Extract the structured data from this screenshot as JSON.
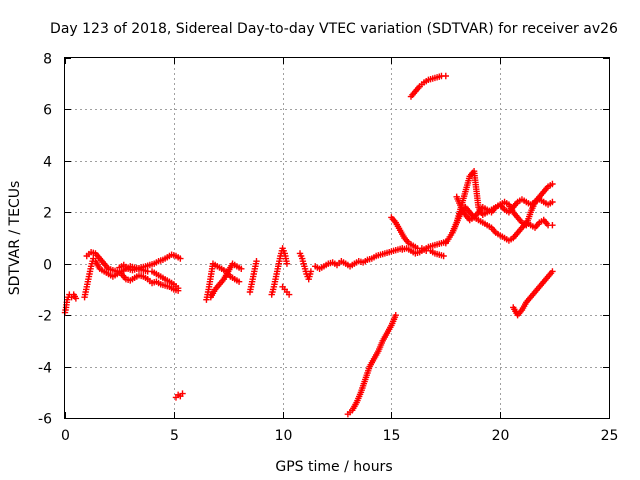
{
  "chart_data": {
    "type": "scatter",
    "title": "Day 123 of 2018, Sidereal Day-to-day VTEC variation (SDTVAR) for receiver av26",
    "xlabel": "GPS time / hours",
    "ylabel": "SDTVAR / TECUs",
    "xlim": [
      0,
      25
    ],
    "ylim": [
      -6,
      8
    ],
    "xticks": [
      0,
      5,
      10,
      15,
      20,
      25
    ],
    "yticks": [
      -6,
      -4,
      -2,
      0,
      2,
      4,
      6,
      8
    ],
    "grid": true,
    "marker": "plus",
    "color": "#ff0000",
    "series": [
      {
        "x": [
          0.0,
          0.05,
          0.1,
          0.2,
          0.3,
          0.4,
          0.5
        ],
        "y": [
          -1.9,
          -1.7,
          -1.4,
          -1.2,
          -1.3,
          -1.2,
          -1.35
        ]
      },
      {
        "x": [
          0.9,
          1.0,
          1.1,
          1.2,
          1.3,
          1.4,
          1.6,
          1.8,
          2.0,
          2.2,
          2.4,
          2.6,
          2.8,
          3.0,
          3.2,
          3.4,
          3.6,
          3.8,
          4.0,
          4.2,
          4.4,
          4.6,
          4.8,
          5.0,
          5.2
        ],
        "y": [
          -1.3,
          -0.9,
          -0.5,
          -0.1,
          0.2,
          0.1,
          -0.2,
          -0.3,
          -0.4,
          -0.5,
          -0.4,
          -0.3,
          -0.2,
          -0.1,
          -0.15,
          -0.2,
          -0.25,
          -0.3,
          -0.3,
          -0.4,
          -0.5,
          -0.6,
          -0.7,
          -0.8,
          -0.95
        ]
      },
      {
        "x": [
          1.0,
          1.2,
          1.4,
          1.6,
          1.8,
          2.0,
          2.2,
          2.4,
          2.6,
          2.8,
          3.0,
          3.2,
          3.4,
          3.6,
          3.8,
          4.0,
          4.2,
          4.4,
          4.6,
          4.8,
          5.0,
          5.2
        ],
        "y": [
          0.3,
          0.45,
          0.4,
          0.2,
          0.0,
          -0.2,
          -0.25,
          -0.3,
          -0.4,
          -0.6,
          -0.65,
          -0.55,
          -0.45,
          -0.5,
          -0.6,
          -0.75,
          -0.7,
          -0.8,
          -0.85,
          -0.9,
          -1.0,
          -1.05
        ]
      },
      {
        "x": [
          2.5,
          2.7,
          2.9,
          3.1,
          3.3,
          3.5,
          3.7,
          3.9,
          4.1,
          4.3,
          4.5,
          4.7,
          4.9,
          5.1,
          5.3
        ],
        "y": [
          -0.15,
          -0.05,
          -0.2,
          -0.25,
          -0.2,
          -0.15,
          -0.1,
          -0.05,
          0.0,
          0.1,
          0.15,
          0.25,
          0.35,
          0.3,
          0.2
        ]
      },
      {
        "x": [
          5.1,
          5.2,
          5.3,
          5.4
        ],
        "y": [
          -5.2,
          -5.1,
          -5.15,
          -5.05
        ]
      },
      {
        "x": [
          6.5,
          6.6,
          6.7,
          6.8,
          7.0,
          7.2,
          7.4,
          7.6,
          7.8,
          8.0
        ],
        "y": [
          -1.4,
          -1.0,
          -0.5,
          0.0,
          -0.1,
          -0.2,
          -0.3,
          -0.5,
          -0.6,
          -0.7
        ]
      },
      {
        "x": [
          6.7,
          6.9,
          7.1,
          7.3,
          7.5,
          7.7,
          7.9,
          8.1
        ],
        "y": [
          -1.3,
          -1.0,
          -0.8,
          -0.6,
          -0.3,
          0.0,
          -0.1,
          -0.2
        ]
      },
      {
        "x": [
          8.5,
          8.6,
          8.7,
          8.8
        ],
        "y": [
          -1.1,
          -0.7,
          -0.3,
          0.1
        ]
      },
      {
        "x": [
          9.5,
          9.6,
          9.7,
          9.8,
          9.9,
          10.0,
          10.1,
          10.2
        ],
        "y": [
          -1.2,
          -0.9,
          -0.5,
          -0.1,
          0.3,
          0.6,
          0.4,
          0.0
        ]
      },
      {
        "x": [
          10.0,
          10.1,
          10.2,
          10.3
        ],
        "y": [
          -0.9,
          -1.0,
          -1.1,
          -1.2
        ]
      },
      {
        "x": [
          10.8,
          10.9,
          11.0,
          11.1,
          11.2,
          11.3
        ],
        "y": [
          0.4,
          0.2,
          -0.1,
          -0.4,
          -0.6,
          -0.3
        ]
      },
      {
        "x": [
          11.5,
          11.7,
          11.9,
          12.1,
          12.3,
          12.5,
          12.7,
          12.9,
          13.1,
          13.3,
          13.5,
          13.7,
          13.9,
          14.1,
          14.3,
          14.5,
          14.7,
          14.9,
          15.1,
          15.3,
          15.5
        ],
        "y": [
          -0.1,
          -0.2,
          -0.1,
          0.0,
          0.05,
          -0.05,
          0.1,
          0.0,
          -0.1,
          0.0,
          0.1,
          0.05,
          0.15,
          0.2,
          0.3,
          0.35,
          0.4,
          0.45,
          0.5,
          0.55,
          0.6
        ]
      },
      {
        "x": [
          15.5,
          15.7,
          15.9,
          16.1,
          16.3,
          16.5,
          16.7,
          16.9,
          17.1,
          17.3,
          17.5
        ],
        "y": [
          0.55,
          0.6,
          0.5,
          0.4,
          0.45,
          0.55,
          0.65,
          0.7,
          0.75,
          0.8,
          0.85
        ]
      },
      {
        "x": [
          15.0,
          15.2,
          15.4,
          15.6,
          15.8,
          16.0,
          16.2,
          16.4,
          16.6,
          16.8,
          17.0,
          17.2,
          17.4
        ],
        "y": [
          1.8,
          1.6,
          1.3,
          1.0,
          0.8,
          0.7,
          0.6,
          0.6,
          0.5,
          0.5,
          0.4,
          0.35,
          0.3
        ]
      },
      {
        "x": [
          13.0,
          13.2,
          13.4,
          13.6,
          13.8,
          14.0,
          14.2,
          14.4,
          14.6,
          14.8,
          15.0,
          15.2
        ],
        "y": [
          -5.85,
          -5.7,
          -5.4,
          -5.0,
          -4.5,
          -4.0,
          -3.7,
          -3.4,
          -3.0,
          -2.7,
          -2.4,
          -2.0
        ]
      },
      {
        "x": [
          15.9,
          16.1,
          16.3,
          16.5,
          16.7,
          16.9,
          17.1,
          17.3,
          17.5
        ],
        "y": [
          6.5,
          6.7,
          6.9,
          7.05,
          7.15,
          7.2,
          7.25,
          7.3,
          7.3
        ]
      },
      {
        "x": [
          17.5,
          17.8,
          18.0,
          18.2,
          18.4,
          18.6,
          18.8,
          19.0,
          19.2,
          19.4,
          19.6,
          19.8,
          20.0,
          20.2,
          20.4,
          20.6,
          20.8,
          21.0,
          21.2,
          21.4,
          21.6,
          21.8,
          22.0,
          22.2,
          22.4
        ],
        "y": [
          0.8,
          1.2,
          1.6,
          2.0,
          2.2,
          2.0,
          1.8,
          1.7,
          1.6,
          1.5,
          1.4,
          1.2,
          1.1,
          1.0,
          0.9,
          1.0,
          1.2,
          1.4,
          1.6,
          1.5,
          1.4,
          1.6,
          1.7,
          1.5,
          1.5
        ]
      },
      {
        "x": [
          17.8,
          18.0,
          18.2,
          18.4,
          18.6,
          18.8,
          19.0,
          19.2,
          19.4,
          19.6,
          19.8,
          20.0,
          20.2,
          20.4,
          20.6,
          20.8,
          21.0,
          21.2,
          21.4,
          21.6,
          21.8,
          22.0,
          22.2,
          22.4
        ],
        "y": [
          1.2,
          1.6,
          2.2,
          2.8,
          3.4,
          3.6,
          2.2,
          1.9,
          2.0,
          2.1,
          2.2,
          2.3,
          2.4,
          2.3,
          2.0,
          1.8,
          1.6,
          1.5,
          2.0,
          2.4,
          2.6,
          2.8,
          3.0,
          3.1
        ]
      },
      {
        "x": [
          18.0,
          18.2,
          18.4,
          18.6,
          18.8,
          19.0,
          19.2,
          19.4,
          19.6,
          19.8,
          20.0,
          20.2,
          20.4,
          20.6,
          20.8,
          21.0,
          21.2,
          21.4,
          21.6,
          21.8,
          22.0,
          22.2,
          22.4
        ],
        "y": [
          2.6,
          2.2,
          1.9,
          1.7,
          1.8,
          2.0,
          2.2,
          2.1,
          2.0,
          2.2,
          2.3,
          2.1,
          2.0,
          2.2,
          2.4,
          2.5,
          2.4,
          2.3,
          2.4,
          2.5,
          2.4,
          2.3,
          2.4
        ]
      },
      {
        "x": [
          20.6,
          20.8,
          21.0,
          21.2,
          21.4,
          21.6,
          21.8,
          22.0,
          22.2,
          22.4
        ],
        "y": [
          -1.7,
          -2.0,
          -1.8,
          -1.5,
          -1.3,
          -1.1,
          -0.9,
          -0.7,
          -0.5,
          -0.3
        ]
      }
    ]
  }
}
